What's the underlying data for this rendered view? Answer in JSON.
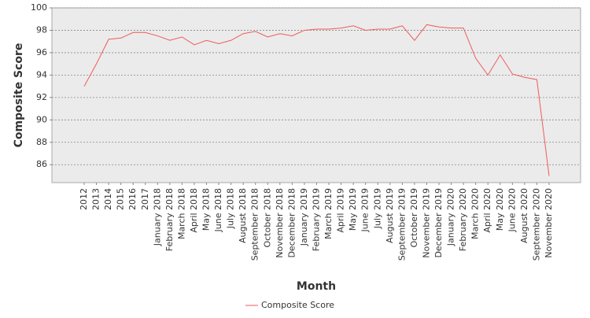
{
  "chart_data": {
    "type": "line",
    "x_label": "Month",
    "y_label": "Composite Score",
    "categories": [
      "2012",
      "2013",
      "2014",
      "2015",
      "2016",
      "2017",
      "January 2018",
      "February 2018",
      "March 2018",
      "April 2018",
      "May 2018",
      "June 2018",
      "July 2018",
      "August 2018",
      "September 2018",
      "October 2018",
      "November 2018",
      "December 2018",
      "January 2019",
      "February 2019",
      "March 2019",
      "April 2019",
      "May 2019",
      "June 2019",
      "July 2019",
      "August 2019",
      "September 2019",
      "October 2019",
      "November 2019",
      "December 2019",
      "January 2020",
      "February 2020",
      "March 2020",
      "April 2020",
      "May 2020",
      "June 2020",
      "August 2020",
      "September 2020",
      "November 2020"
    ],
    "series": [
      {
        "name": "Composite Score",
        "color": "#f05a5a",
        "values": [
          93.0,
          95.0,
          97.2,
          97.3,
          97.8,
          97.8,
          97.5,
          97.1,
          97.4,
          96.7,
          97.1,
          96.8,
          97.1,
          97.7,
          97.9,
          97.4,
          97.7,
          97.5,
          98.0,
          98.1,
          98.1,
          98.2,
          98.4,
          98.0,
          98.1,
          98.1,
          98.4,
          97.1,
          98.5,
          98.3,
          98.2,
          98.2,
          95.5,
          94.0,
          95.8,
          94.1,
          93.8,
          93.6,
          85.0
        ]
      }
    ],
    "ylim": [
      84.4,
      100
    ],
    "yticks": [
      86,
      88,
      90,
      92,
      94,
      96,
      98,
      100
    ],
    "grid": true,
    "legend": "bottom"
  }
}
